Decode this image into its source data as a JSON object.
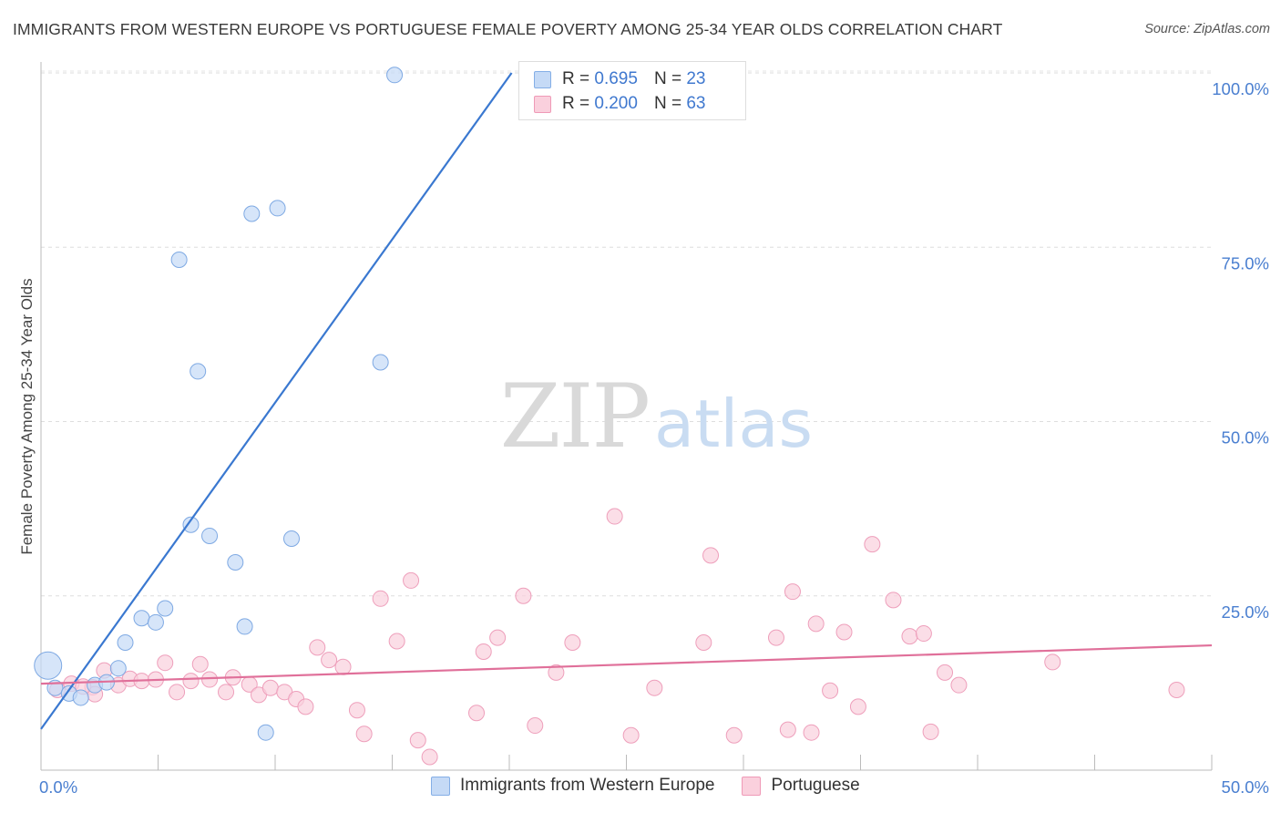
{
  "title": "IMMIGRANTS FROM WESTERN EUROPE VS PORTUGUESE FEMALE POVERTY AMONG 25-34 YEAR OLDS CORRELATION CHART",
  "source": "Source: ZipAtlas.com",
  "watermark": {
    "part1": "ZIP",
    "part2": "atlas"
  },
  "colors": {
    "blue": "#3a78d0",
    "blue_fill": "#c5daf6",
    "pink": "#e0709a",
    "pink_fill": "#fad0dd",
    "axis_label": "#4a7fd0"
  },
  "legend": {
    "rows": [
      {
        "r_label": "R =",
        "r_value": "0.695",
        "n_label": "N =",
        "n_value": "23"
      },
      {
        "r_label": "R =",
        "r_value": "0.200",
        "n_label": "N =",
        "n_value": "63"
      }
    ]
  },
  "bottom_legend": {
    "series1": "Immigrants from Western Europe",
    "series2": "Portuguese"
  },
  "chart_data": {
    "type": "scatter",
    "title": "IMMIGRANTS FROM WESTERN EUROPE VS PORTUGUESE FEMALE POVERTY AMONG 25-34 YEAR OLDS CORRELATION CHART",
    "xlabel": "",
    "ylabel": "Female Poverty Among 25-34 Year Olds",
    "xlim": [
      0,
      50
    ],
    "ylim": [
      0,
      100
    ],
    "x_tick_labels": [
      "0.0%",
      "50.0%"
    ],
    "y_tick_labels": [
      {
        "value": 100,
        "label": "100.0%"
      },
      {
        "value": 75,
        "label": "75.0%"
      },
      {
        "value": 50,
        "label": "50.0%"
      },
      {
        "value": 25,
        "label": "25.0%"
      }
    ],
    "grid": true,
    "series": [
      {
        "name": "Immigrants from Western Europe",
        "r": 0.695,
        "n": 23,
        "trendline": {
          "x": [
            0,
            20.1
          ],
          "y": [
            5.9,
            100
          ]
        },
        "points": [
          {
            "x": 0.3,
            "y": 15.0,
            "big": true
          },
          {
            "x": 0.6,
            "y": 11.8
          },
          {
            "x": 1.2,
            "y": 11.0
          },
          {
            "x": 1.7,
            "y": 10.4
          },
          {
            "x": 2.3,
            "y": 12.2
          },
          {
            "x": 2.8,
            "y": 12.6
          },
          {
            "x": 3.3,
            "y": 14.6
          },
          {
            "x": 3.6,
            "y": 18.3
          },
          {
            "x": 4.3,
            "y": 21.8
          },
          {
            "x": 4.9,
            "y": 21.2
          },
          {
            "x": 5.3,
            "y": 23.2
          },
          {
            "x": 5.9,
            "y": 73.2
          },
          {
            "x": 6.4,
            "y": 35.2
          },
          {
            "x": 6.7,
            "y": 57.2
          },
          {
            "x": 7.2,
            "y": 33.6
          },
          {
            "x": 8.3,
            "y": 29.8
          },
          {
            "x": 8.7,
            "y": 20.6
          },
          {
            "x": 9.0,
            "y": 79.8
          },
          {
            "x": 9.6,
            "y": 5.4
          },
          {
            "x": 10.1,
            "y": 80.6
          },
          {
            "x": 10.7,
            "y": 33.2
          },
          {
            "x": 14.5,
            "y": 58.5
          },
          {
            "x": 15.1,
            "y": 99.7
          }
        ]
      },
      {
        "name": "Portuguese",
        "r": 0.2,
        "n": 63,
        "trendline": {
          "x": [
            0,
            50
          ],
          "y": [
            12.4,
            17.9
          ]
        },
        "points": [
          {
            "x": 0.7,
            "y": 11.5
          },
          {
            "x": 1.3,
            "y": 12.4
          },
          {
            "x": 2.2,
            "y": 11.9
          },
          {
            "x": 2.3,
            "y": 10.9
          },
          {
            "x": 2.7,
            "y": 14.3
          },
          {
            "x": 3.3,
            "y": 12.2
          },
          {
            "x": 3.8,
            "y": 13.1
          },
          {
            "x": 4.3,
            "y": 12.8
          },
          {
            "x": 4.9,
            "y": 13.0
          },
          {
            "x": 5.3,
            "y": 15.4
          },
          {
            "x": 5.8,
            "y": 11.2
          },
          {
            "x": 6.4,
            "y": 12.8
          },
          {
            "x": 6.8,
            "y": 15.2
          },
          {
            "x": 7.2,
            "y": 13.0
          },
          {
            "x": 7.9,
            "y": 11.2
          },
          {
            "x": 8.2,
            "y": 13.3
          },
          {
            "x": 8.9,
            "y": 12.3
          },
          {
            "x": 9.3,
            "y": 10.8
          },
          {
            "x": 9.8,
            "y": 11.8
          },
          {
            "x": 10.4,
            "y": 11.2
          },
          {
            "x": 10.9,
            "y": 10.2
          },
          {
            "x": 11.3,
            "y": 9.1
          },
          {
            "x": 11.8,
            "y": 17.6
          },
          {
            "x": 12.3,
            "y": 15.8
          },
          {
            "x": 12.9,
            "y": 14.8
          },
          {
            "x": 13.5,
            "y": 8.6
          },
          {
            "x": 13.8,
            "y": 5.2
          },
          {
            "x": 14.5,
            "y": 24.6
          },
          {
            "x": 15.2,
            "y": 18.5
          },
          {
            "x": 15.8,
            "y": 27.2
          },
          {
            "x": 16.1,
            "y": 4.3
          },
          {
            "x": 16.6,
            "y": 1.9
          },
          {
            "x": 18.6,
            "y": 8.2
          },
          {
            "x": 18.9,
            "y": 17.0
          },
          {
            "x": 19.5,
            "y": 19.0
          },
          {
            "x": 20.6,
            "y": 25.0
          },
          {
            "x": 21.1,
            "y": 6.4
          },
          {
            "x": 22.0,
            "y": 14.0
          },
          {
            "x": 22.7,
            "y": 18.3
          },
          {
            "x": 24.5,
            "y": 36.4
          },
          {
            "x": 25.2,
            "y": 5.0
          },
          {
            "x": 26.2,
            "y": 11.8
          },
          {
            "x": 28.3,
            "y": 18.3
          },
          {
            "x": 28.6,
            "y": 30.8
          },
          {
            "x": 29.6,
            "y": 5.0
          },
          {
            "x": 31.4,
            "y": 19.0
          },
          {
            "x": 31.9,
            "y": 5.8
          },
          {
            "x": 32.1,
            "y": 25.6
          },
          {
            "x": 32.9,
            "y": 5.4
          },
          {
            "x": 33.1,
            "y": 21.0
          },
          {
            "x": 33.7,
            "y": 11.4
          },
          {
            "x": 34.3,
            "y": 19.8
          },
          {
            "x": 34.9,
            "y": 9.1
          },
          {
            "x": 35.5,
            "y": 32.4
          },
          {
            "x": 36.4,
            "y": 24.4
          },
          {
            "x": 37.1,
            "y": 19.2
          },
          {
            "x": 37.7,
            "y": 19.6
          },
          {
            "x": 38.0,
            "y": 5.5
          },
          {
            "x": 38.6,
            "y": 14.0
          },
          {
            "x": 39.2,
            "y": 12.2
          },
          {
            "x": 43.2,
            "y": 15.5
          },
          {
            "x": 48.5,
            "y": 11.5
          },
          {
            "x": 1.8,
            "y": 12.0
          }
        ]
      }
    ]
  }
}
